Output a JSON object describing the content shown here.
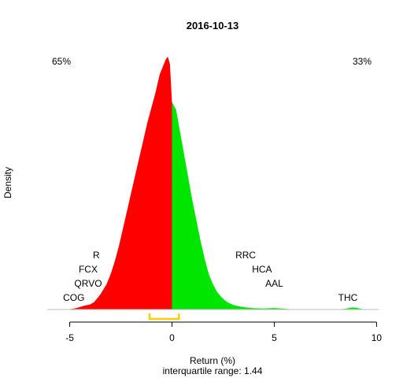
{
  "chart_data": {
    "type": "area",
    "title": "2016-10-13",
    "xlabel": "Return (%)",
    "subtitle": "interquartile range: 1.44",
    "ylabel": "Density",
    "xlim": [
      -6.1,
      10.1
    ],
    "xticks": [
      -5,
      0,
      5,
      10
    ],
    "tick_labels": [
      "-5",
      "0",
      "5",
      "10"
    ],
    "pct_left": "65%",
    "pct_right": "33%",
    "colors": {
      "negative": "#ff0000",
      "positive": "#00e600",
      "left_pct": "#ff0000",
      "right_pct": "#009900",
      "iqr": "#ffcc00",
      "baseline": "#bebebe"
    },
    "iqr_range": [
      -1.1,
      0.34
    ],
    "density": {
      "x": [
        -5.1,
        -4.7,
        -4.3,
        -4.0,
        -3.8,
        -3.5,
        -3.2,
        -3.0,
        -2.8,
        -2.6,
        -2.4,
        -2.2,
        -2.0,
        -1.8,
        -1.6,
        -1.4,
        -1.2,
        -1.0,
        -0.8,
        -0.6,
        -0.4,
        -0.3,
        -0.2,
        -0.1,
        0.0,
        0.2,
        0.4,
        0.6,
        0.8,
        1.0,
        1.2,
        1.4,
        1.6,
        1.8,
        2.0,
        2.2,
        2.4,
        2.6,
        2.8,
        3.0,
        3.3,
        3.6,
        4.0,
        4.5,
        5.0,
        5.5,
        6.0,
        7.0,
        8.0,
        8.5,
        8.8,
        9.0,
        9.3,
        9.6
      ],
      "y": [
        0.0,
        0.005,
        0.015,
        0.02,
        0.03,
        0.06,
        0.1,
        0.14,
        0.19,
        0.25,
        0.32,
        0.39,
        0.46,
        0.53,
        0.6,
        0.67,
        0.74,
        0.8,
        0.86,
        0.93,
        0.97,
        0.99,
        1.0,
        0.97,
        0.82,
        0.79,
        0.7,
        0.61,
        0.52,
        0.43,
        0.35,
        0.27,
        0.2,
        0.14,
        0.1,
        0.07,
        0.05,
        0.035,
        0.025,
        0.018,
        0.012,
        0.008,
        0.005,
        0.004,
        0.006,
        0.003,
        0.0,
        0.0,
        0.0,
        0.003,
        0.008,
        0.007,
        0.002,
        0.0
      ]
    },
    "annotations": [
      {
        "text": "R",
        "x": -3.7,
        "row": 4
      },
      {
        "text": "FCX",
        "x": -4.1,
        "row": 3
      },
      {
        "text": "QRVO",
        "x": -4.1,
        "row": 2
      },
      {
        "text": "COG",
        "x": -4.8,
        "row": 1
      },
      {
        "text": "RRC",
        "x": 3.6,
        "row": 4
      },
      {
        "text": "HCA",
        "x": 4.4,
        "row": 3
      },
      {
        "text": "AAL",
        "x": 5.0,
        "row": 2
      },
      {
        "text": "THC",
        "x": 8.6,
        "row": 1
      }
    ]
  }
}
